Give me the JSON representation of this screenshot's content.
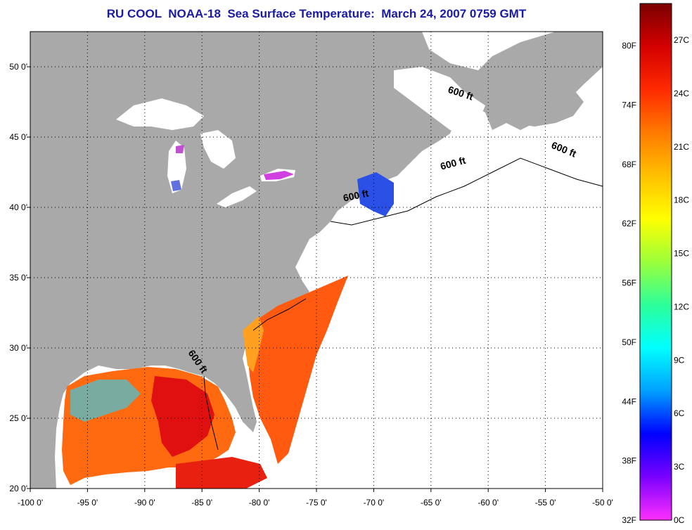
{
  "title": "RU COOL  NOAA-18  Sea Surface Temperature:  March 24, 2007 0759 GMT",
  "map": {
    "lon_range": [
      -100,
      -50
    ],
    "lat_range": [
      20,
      52.5
    ],
    "lon_ticks": [
      "-100 0'",
      "-95 0'",
      "-90 0'",
      "-85 0'",
      "-80 0'",
      "-75 0'",
      "-70 0'",
      "-65 0'",
      "-60 0'",
      "-55 0'",
      "-50 0'"
    ],
    "lat_ticks": [
      "50 0'",
      "45 0'",
      "40 0'",
      "35 0'",
      "30 0'",
      "25 0'",
      "20 0'"
    ],
    "grid": "dotted",
    "land_color": "#a9a9a9",
    "ocean_nodata_color": "#ffffff",
    "contour_labels": [
      {
        "text": "600 ft",
        "lon": -62.5,
        "lat": 47.9,
        "angle": 18
      },
      {
        "text": "600 ft",
        "lon": -53.5,
        "lat": 43.9,
        "angle": 22
      },
      {
        "text": "600 ft",
        "lon": -63.0,
        "lat": 42.9,
        "angle": -15
      },
      {
        "text": "600 ft",
        "lon": -71.5,
        "lat": 40.6,
        "angle": -12
      },
      {
        "text": "600 ft",
        "lon": -85.6,
        "lat": 28.9,
        "angle": 55
      }
    ]
  },
  "colorbar": {
    "fahrenheit_labels": [
      "80F",
      "74F",
      "68F",
      "62F",
      "56F",
      "50F",
      "44F",
      "38F",
      "32F"
    ],
    "celsius_labels": [
      "27C",
      "24C",
      "21C",
      "18C",
      "15C",
      "12C",
      "9C",
      "6C",
      "3C",
      "0C"
    ],
    "colors_top_to_bottom": [
      "#7a0000",
      "#d40000",
      "#ff2a00",
      "#ff7a00",
      "#ffc000",
      "#ffff00",
      "#9cff3a",
      "#2cff9a",
      "#00ffff",
      "#00a0ff",
      "#0000ff",
      "#7a00ff",
      "#ff30ff"
    ]
  }
}
